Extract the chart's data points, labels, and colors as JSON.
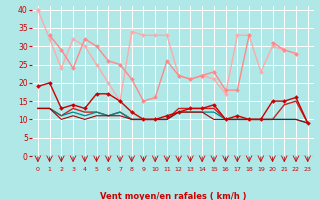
{
  "x": [
    0,
    1,
    2,
    3,
    4,
    5,
    6,
    7,
    8,
    9,
    10,
    11,
    12,
    13,
    14,
    15,
    16,
    17,
    18,
    19,
    20,
    21,
    22,
    23
  ],
  "series": [
    {
      "label": "rafales_max",
      "y": [
        40,
        32,
        24,
        32,
        30,
        25,
        20,
        15,
        34,
        33,
        33,
        33,
        22,
        21,
        22,
        21,
        17,
        33,
        33,
        23,
        30,
        29,
        null,
        null
      ],
      "color": "#ffaaaa",
      "marker": "D",
      "markersize": 2,
      "linewidth": 1.0,
      "zorder": 2
    },
    {
      "label": "rafales_mean",
      "y": [
        null,
        33,
        29,
        24,
        32,
        30,
        26,
        25,
        21,
        15,
        16,
        26,
        22,
        21,
        22,
        23,
        18,
        18,
        33,
        null,
        31,
        29,
        28,
        null
      ],
      "color": "#ff8888",
      "marker": "D",
      "markersize": 2,
      "linewidth": 1.0,
      "zorder": 2
    },
    {
      "label": "vent_max",
      "y": [
        19,
        20,
        13,
        14,
        13,
        17,
        17,
        15,
        12,
        10,
        10,
        11,
        12,
        13,
        13,
        14,
        10,
        11,
        10,
        10,
        15,
        15,
        16,
        9
      ],
      "color": "#cc0000",
      "marker": "D",
      "markersize": 2,
      "linewidth": 1.0,
      "zorder": 3
    },
    {
      "label": "vent_mean1",
      "y": [
        13,
        13,
        11,
        13,
        12,
        12,
        11,
        12,
        10,
        10,
        10,
        10,
        13,
        13,
        13,
        13,
        10,
        10,
        10,
        10,
        10,
        14,
        15,
        9
      ],
      "color": "#cc2222",
      "marker": null,
      "markersize": 0,
      "linewidth": 1.0,
      "zorder": 2
    },
    {
      "label": "vent_mean2",
      "y": [
        13,
        13,
        11,
        12,
        11,
        12,
        11,
        12,
        10,
        10,
        10,
        10,
        12,
        12,
        12,
        12,
        10,
        10,
        10,
        10,
        10,
        10,
        10,
        9
      ],
      "color": "#008888",
      "marker": null,
      "markersize": 0,
      "linewidth": 0.9,
      "zorder": 2
    },
    {
      "label": "vent_mean3",
      "y": [
        13,
        13,
        10,
        11,
        10,
        11,
        11,
        11,
        10,
        10,
        10,
        10,
        12,
        12,
        12,
        10,
        10,
        10,
        10,
        10,
        10,
        10,
        10,
        9
      ],
      "color": "#aa0000",
      "marker": null,
      "markersize": 0,
      "linewidth": 0.8,
      "zorder": 2
    }
  ],
  "xlim": [
    -0.5,
    23.5
  ],
  "ylim": [
    0,
    41
  ],
  "yticks": [
    0,
    5,
    10,
    15,
    20,
    25,
    30,
    35,
    40
  ],
  "xticks": [
    0,
    1,
    2,
    3,
    4,
    5,
    6,
    7,
    8,
    9,
    10,
    11,
    12,
    13,
    14,
    15,
    16,
    17,
    18,
    19,
    20,
    21,
    22,
    23
  ],
  "xlabel": "Vent moyen/en rafales ( km/h )",
  "background_color": "#b0e8e8",
  "grid_color": "#ffffff",
  "tick_color": "#cc0000",
  "label_color": "#cc0000",
  "arrow_color": "#cc0000"
}
